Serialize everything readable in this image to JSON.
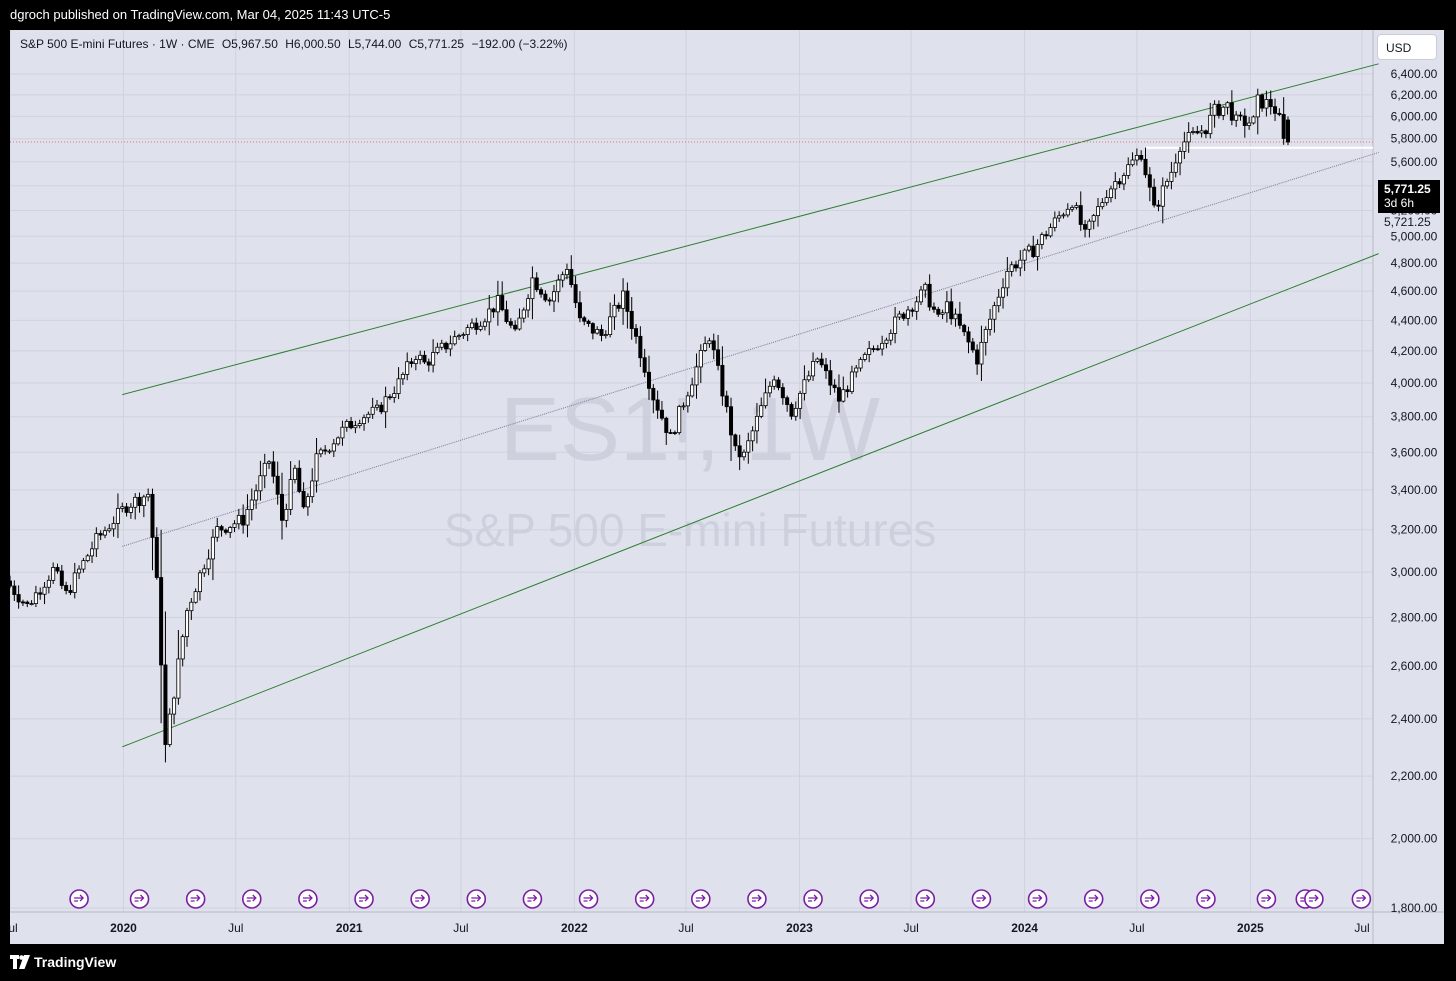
{
  "header": {
    "published": "dgroch published on TradingView.com, Mar 04, 2025 11:43 UTC-5"
  },
  "footer": {
    "brand": "TradingView"
  },
  "legend": {
    "symbol": "S&P 500 E-mini Futures · 1W · CME",
    "open": "O5,967.50",
    "high": "H6,000.50",
    "low": "L5,744.00",
    "close": "C5,771.25",
    "change": "−192.00 (−3.22%)"
  },
  "currency": "USD",
  "last_price": {
    "price": "5,771.25",
    "countdown": "3d 6h"
  },
  "support_label": "5,721.25",
  "watermark": {
    "ticker": "ES1!, 1W",
    "name": "S&P 500 E-mini Futures"
  },
  "colors": {
    "background": "#dfe2ec",
    "channel": "#2e7d32",
    "midline": "#7e7a99",
    "event_marker": "#7b1fa2",
    "last_price_line": "#e57373",
    "candle_up": "#ffffff",
    "candle_down": "#000000"
  },
  "chart_data": {
    "type": "candlestick",
    "title": "S&P 500 E-mini Futures · 1W · CME",
    "x_axis_labels": [
      "Jul",
      "2020",
      "Jul",
      "2021",
      "Jul",
      "2022",
      "Jul",
      "2023",
      "Jul",
      "2024",
      "Jul",
      "2025",
      "Jul"
    ],
    "x_axis_dates": [
      "2019-07-01",
      "2020-01-01",
      "2020-07-01",
      "2021-01-01",
      "2021-07-01",
      "2022-01-01",
      "2022-07-01",
      "2023-01-01",
      "2023-07-01",
      "2024-01-01",
      "2024-07-01",
      "2025-01-01",
      "2025-07-01"
    ],
    "y_tick_values": [
      1800,
      2000,
      2200,
      2400,
      2600,
      2800,
      3000,
      3200,
      3400,
      3600,
      3800,
      4000,
      4200,
      4400,
      4600,
      4800,
      5000,
      5200,
      5400,
      5600,
      5800,
      6000,
      6200,
      6400
    ],
    "y_tick_labels": [
      "1,800.00",
      "2,000.00",
      "2,200.00",
      "2,400.00",
      "2,600.00",
      "2,800.00",
      "3,000.00",
      "3,200.00",
      "3,400.00",
      "3,600.00",
      "3,800.00",
      "4,000.00",
      "4,200.00",
      "4,400.00",
      "4,600.00",
      "4,800.00",
      "5,000.00",
      "5,200.00",
      "5,400.00",
      "5,600.00",
      "5,800.00",
      "6,000.00",
      "6,200.00",
      "6,400.00"
    ],
    "ylim": [
      1750,
      6550
    ],
    "grid": true,
    "scale": "log",
    "ohlc_anchor_path": [
      [
        "2019-07-01",
        2960
      ],
      [
        "2019-08-05",
        2850
      ],
      [
        "2019-09-16",
        3010
      ],
      [
        "2019-10-07",
        2900
      ],
      [
        "2019-11-25",
        3150
      ],
      [
        "2020-01-13",
        3320
      ],
      [
        "2020-02-17",
        3380
      ],
      [
        "2020-03-02",
        2950
      ],
      [
        "2020-03-16",
        2300
      ],
      [
        "2020-03-30",
        2500
      ],
      [
        "2020-04-20",
        2830
      ],
      [
        "2020-06-08",
        3200
      ],
      [
        "2020-07-20",
        3250
      ],
      [
        "2020-09-01",
        3560
      ],
      [
        "2020-09-21",
        3250
      ],
      [
        "2020-10-12",
        3500
      ],
      [
        "2020-10-26",
        3280
      ],
      [
        "2020-11-16",
        3560
      ],
      [
        "2020-12-28",
        3720
      ],
      [
        "2021-01-25",
        3800
      ],
      [
        "2021-02-22",
        3830
      ],
      [
        "2021-03-29",
        4000
      ],
      [
        "2021-04-26",
        4180
      ],
      [
        "2021-05-10",
        4120
      ],
      [
        "2021-06-21",
        4260
      ],
      [
        "2021-08-16",
        4430
      ],
      [
        "2021-09-06",
        4520
      ],
      [
        "2021-10-04",
        4300
      ],
      [
        "2021-11-01",
        4690
      ],
      [
        "2021-11-29",
        4540
      ],
      [
        "2021-12-27",
        4780
      ],
      [
        "2022-01-17",
        4390
      ],
      [
        "2022-02-21",
        4300
      ],
      [
        "2022-03-28",
        4560
      ],
      [
        "2022-05-16",
        3920
      ],
      [
        "2022-06-13",
        3680
      ],
      [
        "2022-08-15",
        4300
      ],
      [
        "2022-09-26",
        3600
      ],
      [
        "2022-10-10",
        3580
      ],
      [
        "2022-11-28",
        4050
      ],
      [
        "2022-12-26",
        3830
      ],
      [
        "2023-02-06",
        4150
      ],
      [
        "2023-03-13",
        3900
      ],
      [
        "2023-04-24",
        4150
      ],
      [
        "2023-06-26",
        4450
      ],
      [
        "2023-07-31",
        4600
      ],
      [
        "2023-08-21",
        4400
      ],
      [
        "2023-09-04",
        4500
      ],
      [
        "2023-10-23",
        4150
      ],
      [
        "2023-12-11",
        4750
      ],
      [
        "2024-01-22",
        4900
      ],
      [
        "2024-03-25",
        5280
      ],
      [
        "2024-04-15",
        5000
      ],
      [
        "2024-05-20",
        5350
      ],
      [
        "2024-07-15",
        5680
      ],
      [
        "2024-08-05",
        5200
      ],
      [
        "2024-09-02",
        5520
      ],
      [
        "2024-09-16",
        5750
      ],
      [
        "2024-10-28",
        5900
      ],
      [
        "2024-11-11",
        6050
      ],
      [
        "2024-12-02",
        6100
      ],
      [
        "2024-12-16",
        5950
      ],
      [
        "2025-01-13",
        5950
      ],
      [
        "2025-01-20",
        6140
      ],
      [
        "2025-02-10",
        6110
      ],
      [
        "2025-02-17",
        6060
      ],
      [
        "2025-02-24",
        5963
      ],
      [
        "2025-03-03",
        5771.25
      ]
    ],
    "last_candle": {
      "date": "2025-03-03",
      "open": 5967.5,
      "high": 6000.5,
      "low": 5744.0,
      "close": 5771.25
    },
    "channel": {
      "upper": {
        "start": [
          "2019-12-30",
          3930
        ],
        "end": [
          "2025-07-28",
          6500
        ]
      },
      "lower": {
        "start": [
          "2019-12-30",
          2300
        ],
        "end": [
          "2025-07-28",
          4870
        ]
      },
      "middle": {
        "start": [
          "2019-12-30",
          3120
        ],
        "end": [
          "2025-07-28",
          5680
        ]
      }
    },
    "support_line": {
      "price": 5721.25,
      "start": "2024-07-15",
      "end": "2025-07-28"
    },
    "last_price_line": 5771.25,
    "event_markers": [
      "2019-10-21",
      "2020-01-27",
      "2020-04-27",
      "2020-07-27",
      "2020-10-26",
      "2021-01-25",
      "2021-04-26",
      "2021-07-26",
      "2021-10-25",
      "2022-01-24",
      "2022-04-25",
      "2022-07-25",
      "2022-10-24",
      "2023-01-23",
      "2023-04-24",
      "2023-07-24",
      "2023-10-23",
      "2024-01-22",
      "2024-04-22",
      "2024-07-22",
      "2024-10-21",
      "2025-01-27",
      "2025-03-31",
      "2025-04-14",
      "2025-06-30"
    ]
  }
}
